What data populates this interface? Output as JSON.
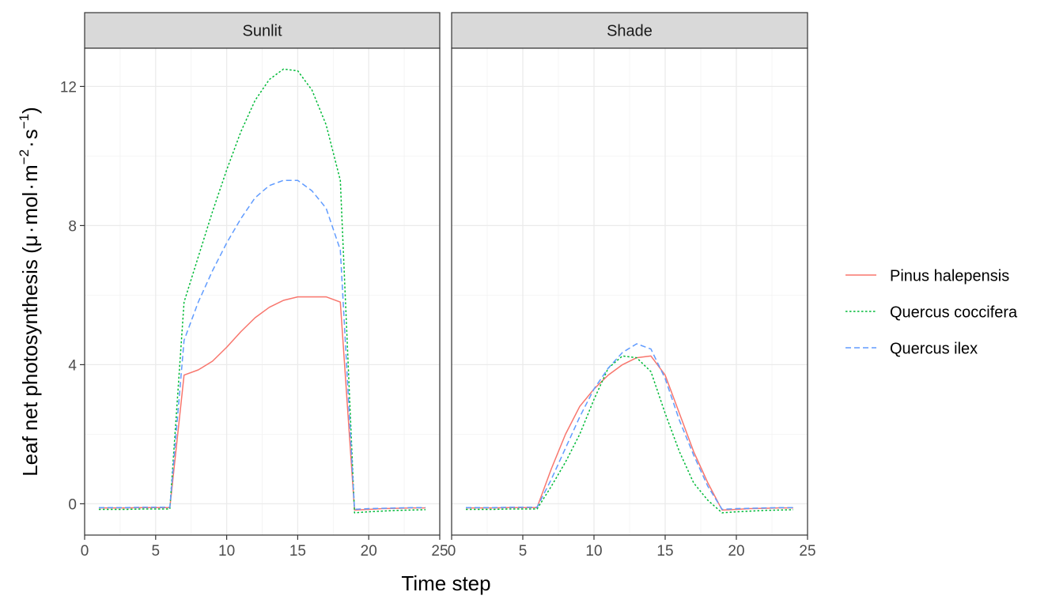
{
  "chart_data": {
    "type": "line",
    "xlabel": "Time step",
    "ylabel": {
      "prefix": "Leaf net photosynthesis (",
      "mu": "μ",
      "dot": "·",
      "mol": "mol",
      "m": "m",
      "m_exp": "−2",
      "s": "s",
      "s_exp": "−1",
      "suffix": ")"
    },
    "xlim": [
      0,
      25
    ],
    "ylim": [
      -0.9,
      13.1
    ],
    "xticks": [
      0,
      5,
      10,
      15,
      20,
      25
    ],
    "yticks": [
      0,
      4,
      8,
      12
    ],
    "grid": true,
    "legend_position": "right",
    "x": [
      1,
      2,
      3,
      4,
      5,
      6,
      7,
      8,
      9,
      10,
      11,
      12,
      13,
      14,
      15,
      16,
      17,
      18,
      19,
      20,
      21,
      22,
      23,
      24
    ],
    "panels": [
      {
        "name": "Sunlit",
        "series": [
          {
            "name": "Pinus halepensis",
            "values": [
              -0.12,
              -0.12,
              -0.12,
              -0.11,
              -0.11,
              -0.11,
              3.7,
              3.85,
              4.1,
              4.5,
              4.95,
              5.35,
              5.65,
              5.85,
              5.95,
              5.95,
              5.95,
              5.8,
              -0.18,
              -0.16,
              -0.14,
              -0.13,
              -0.12,
              -0.12
            ]
          },
          {
            "name": "Quercus coccifera",
            "values": [
              -0.16,
              -0.16,
              -0.16,
              -0.15,
              -0.15,
              -0.15,
              5.8,
              7.1,
              8.4,
              9.6,
              10.7,
              11.6,
              12.2,
              12.5,
              12.45,
              11.9,
              10.9,
              9.3,
              -0.26,
              -0.23,
              -0.21,
              -0.19,
              -0.18,
              -0.17
            ]
          },
          {
            "name": "Quercus ilex",
            "values": [
              -0.11,
              -0.11,
              -0.11,
              -0.1,
              -0.1,
              -0.1,
              4.7,
              5.8,
              6.7,
              7.5,
              8.2,
              8.8,
              9.15,
              9.3,
              9.3,
              9.0,
              8.5,
              7.3,
              -0.16,
              -0.14,
              -0.13,
              -0.12,
              -0.11,
              -0.11
            ]
          }
        ]
      },
      {
        "name": "Shade",
        "series": [
          {
            "name": "Pinus halepensis",
            "values": [
              -0.12,
              -0.12,
              -0.12,
              -0.11,
              -0.11,
              -0.11,
              1.0,
              2.0,
              2.8,
              3.3,
              3.7,
              4.0,
              4.2,
              4.25,
              3.7,
              2.6,
              1.5,
              0.6,
              -0.18,
              -0.16,
              -0.14,
              -0.13,
              -0.12,
              -0.12
            ]
          },
          {
            "name": "Quercus coccifera",
            "values": [
              -0.16,
              -0.16,
              -0.16,
              -0.15,
              -0.15,
              -0.15,
              0.5,
              1.2,
              2.0,
              3.0,
              3.9,
              4.25,
              4.2,
              3.8,
              2.6,
              1.5,
              0.6,
              0.1,
              -0.26,
              -0.23,
              -0.21,
              -0.19,
              -0.18,
              -0.17
            ]
          },
          {
            "name": "Quercus ilex",
            "values": [
              -0.11,
              -0.11,
              -0.11,
              -0.1,
              -0.1,
              -0.1,
              0.7,
              1.6,
              2.5,
              3.3,
              3.9,
              4.35,
              4.6,
              4.45,
              3.6,
              2.4,
              1.4,
              0.5,
              -0.16,
              -0.14,
              -0.13,
              -0.12,
              -0.11,
              -0.11
            ]
          }
        ]
      }
    ],
    "legend": [
      {
        "name": "Pinus halepensis",
        "color": "#F8766D",
        "dash": "solid"
      },
      {
        "name": "Quercus coccifera",
        "color": "#00BA38",
        "dash": "dotted"
      },
      {
        "name": "Quercus ilex",
        "color": "#619CFF",
        "dash": "dashed"
      }
    ]
  }
}
